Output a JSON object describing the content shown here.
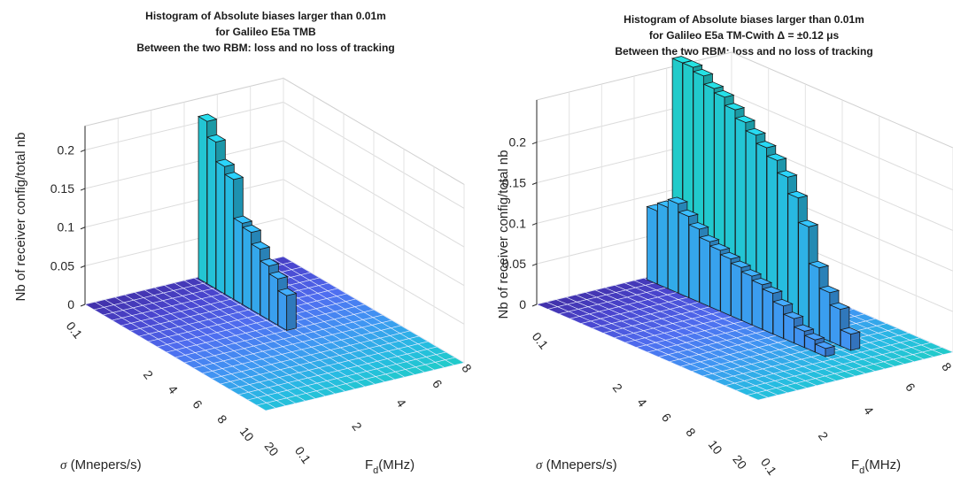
{
  "chart_data": [
    {
      "type": "bar3d",
      "title": [
        "Histogram of Absolute biases larger than 0.01m",
        "for Galileo E5a TMB",
        "Between the two RBM: loss and no loss of tracking"
      ],
      "xlabel": "F_d(MHz)",
      "ylabel": "σ (Mnepers/s)",
      "zlabel": "Nb of receiver config/total nb",
      "x_ticks": [
        "0.1",
        "2",
        "4",
        "6",
        "8"
      ],
      "y_ticks": [
        "0.1",
        "2",
        "4",
        "6",
        "8",
        "10",
        "20"
      ],
      "z_ticks": [
        "0",
        "0.05",
        "0.1",
        "0.15",
        "0.2"
      ],
      "zlim": [
        0,
        0.22
      ],
      "colormap": [
        "#3f2a9e",
        "#4a46cf",
        "#4f6ef0",
        "#3f97f2",
        "#26bce1",
        "#1fd2c0"
      ],
      "series": [
        {
          "name": "",
          "values": [
            0.21,
            0.19,
            0.165,
            0.155,
            0.105,
            0.1,
            0.085,
            0.07,
            0.06,
            0.045
          ]
        },
        {
          "name": "",
          "values": [
            0,
            0,
            0.06,
            0.045,
            0.035,
            0.025,
            0.015,
            0.01,
            0,
            0
          ]
        }
      ]
    },
    {
      "type": "bar3d",
      "title": [
        "Histogram of Absolute biases larger than 0.01m",
        "for Galileo E5a TM-Cwith Δ = ±0.12 μs",
        "Between the two RBM: loss and no loss of tracking"
      ],
      "xlabel": "F_d(MHz)",
      "ylabel": "σ (Mnepers/s)",
      "zlabel": "Nb of receiver config/total nb",
      "x_ticks": [
        "0.1",
        "2",
        "4",
        "6",
        "8"
      ],
      "y_ticks": [
        "0.1",
        "2",
        "4",
        "6",
        "8",
        "10",
        "20"
      ],
      "z_ticks": [
        "0",
        "0.05",
        "0.1",
        "0.15",
        "0.2"
      ],
      "zlim": [
        0,
        0.24
      ],
      "colormap": [
        "#3f2a9e",
        "#4a46cf",
        "#4f6ef0",
        "#3f97f2",
        "#26bce1",
        "#1fd2c0"
      ],
      "series": [
        {
          "name": "",
          "values": [
            0.265,
            0.265,
            0.26,
            0.25,
            0.245,
            0.235,
            0.225,
            0.215,
            0.205,
            0.195,
            0.18,
            0.16,
            0.13,
            0.085,
            0.06,
            0.045,
            0.02
          ]
        },
        {
          "name": "",
          "values": [
            0.09,
            0.1,
            0.11,
            0.1,
            0.09,
            0.08,
            0.075,
            0.07,
            0.065,
            0.06,
            0.055,
            0.05,
            0.04,
            0.03,
            0.02,
            0.015,
            0.01
          ]
        }
      ]
    }
  ]
}
